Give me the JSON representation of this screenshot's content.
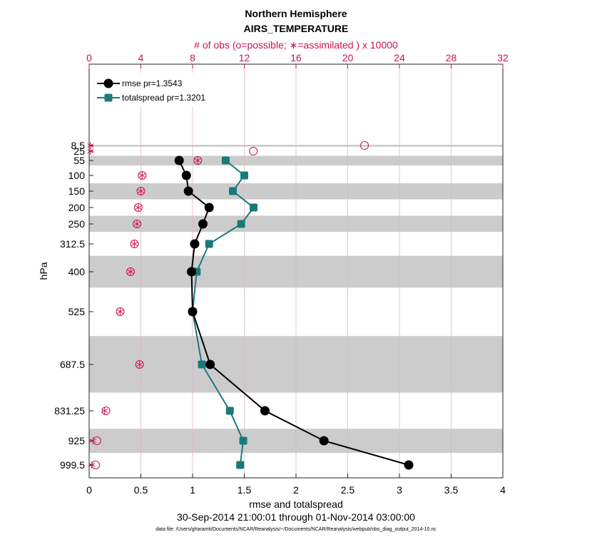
{
  "chart_data": {
    "type": "line",
    "title": "Northern Hemisphere",
    "subtitle": "AIRS_TEMPERATURE",
    "xlabel": "rmse and totalspread",
    "ylabel": "hPa",
    "top_xlabel": "# of obs (o=possible; ∗=assimilated ) x 10000",
    "date_range": "30-Sep-2014 21:00:01 through 01-Nov-2014 03:00:00",
    "footnote": "data file: /Users/gharamti/Documents/NCAR/Reanalysis/~/Documents/NCAR/Reanalysis/webpub/obs_diag_output_2014-10.nc",
    "xlim": [
      0,
      4
    ],
    "top_xlim": [
      0,
      32
    ],
    "x_ticks": [
      "0",
      "0.5",
      "1",
      "1.5",
      "2",
      "2.5",
      "3",
      "3.5",
      "4"
    ],
    "top_ticks": [
      "0",
      "4",
      "8",
      "12",
      "16",
      "20",
      "24",
      "28",
      "32"
    ],
    "y_levels": [
      {
        "value": 8.5,
        "label": "8.5"
      },
      {
        "value": 25,
        "label": "25"
      },
      {
        "value": 55,
        "label": "55"
      },
      {
        "value": 100,
        "label": "100"
      },
      {
        "value": 150,
        "label": "150"
      },
      {
        "value": 200,
        "label": "200"
      },
      {
        "value": 250,
        "label": "250"
      },
      {
        "value": 312.5,
        "label": "312.5"
      },
      {
        "value": 400,
        "label": "400"
      },
      {
        "value": 525,
        "label": "525"
      },
      {
        "value": 687.5,
        "label": "687.5"
      },
      {
        "value": 831.25,
        "label": "831.25"
      },
      {
        "value": 925,
        "label": "925"
      },
      {
        "value": 999.5,
        "label": "999.5"
      }
    ],
    "shaded_bands_hpa": [
      [
        5,
        12
      ],
      [
        40,
        70
      ],
      [
        125,
        175
      ],
      [
        225,
        275
      ],
      [
        350,
        450
      ],
      [
        600,
        775
      ],
      [
        887.5,
        962.5
      ]
    ],
    "series": [
      {
        "name": "rmse",
        "legend": "rmse pr=1.3543",
        "color": "#000000",
        "marker": "circle",
        "points": [
          [
            0.87,
            55
          ],
          [
            0.94,
            100
          ],
          [
            0.96,
            150
          ],
          [
            1.16,
            200
          ],
          [
            1.1,
            250
          ],
          [
            1.02,
            312.5
          ],
          [
            0.99,
            400
          ],
          [
            1.0,
            525
          ],
          [
            1.17,
            687.5
          ],
          [
            1.7,
            831.25
          ],
          [
            2.27,
            925
          ],
          [
            3.09,
            999.5
          ]
        ]
      },
      {
        "name": "totalspread",
        "legend": "totalspread pr=1.3201",
        "color": "#1a7a7a",
        "marker": "square",
        "points": [
          [
            1.32,
            55
          ],
          [
            1.5,
            100
          ],
          [
            1.39,
            150
          ],
          [
            1.59,
            200
          ],
          [
            1.47,
            250
          ],
          [
            1.16,
            312.5
          ],
          [
            1.04,
            400
          ],
          [
            1.0,
            525
          ],
          [
            1.09,
            687.5
          ],
          [
            1.36,
            831.25
          ],
          [
            1.49,
            925
          ],
          [
            1.46,
            999.5
          ]
        ]
      }
    ],
    "obs_possible": [
      [
        21.3,
        8.5
      ],
      [
        12.7,
        25
      ],
      [
        8.4,
        55
      ],
      [
        4.1,
        100
      ],
      [
        4.0,
        150
      ],
      [
        3.8,
        200
      ],
      [
        3.7,
        250
      ],
      [
        3.5,
        312.5
      ],
      [
        3.2,
        400
      ],
      [
        2.4,
        525
      ],
      [
        3.9,
        687.5
      ],
      [
        1.3,
        831.25
      ],
      [
        0.6,
        925
      ],
      [
        0.5,
        999.5
      ]
    ],
    "obs_assimilated": [
      [
        0.1,
        8.5
      ],
      [
        0.1,
        25
      ],
      [
        8.4,
        55
      ],
      [
        4.1,
        100
      ],
      [
        4.0,
        150
      ],
      [
        3.8,
        200
      ],
      [
        3.7,
        250
      ],
      [
        3.5,
        312.5
      ],
      [
        3.2,
        400
      ],
      [
        2.4,
        525
      ],
      [
        3.9,
        687.5
      ],
      [
        1.2,
        831.25
      ],
      [
        0.3,
        925
      ],
      [
        0.2,
        999.5
      ]
    ]
  },
  "colors": {
    "obs": "#cc1155",
    "band": "#cccccc",
    "grid": "#d9b9c6"
  }
}
